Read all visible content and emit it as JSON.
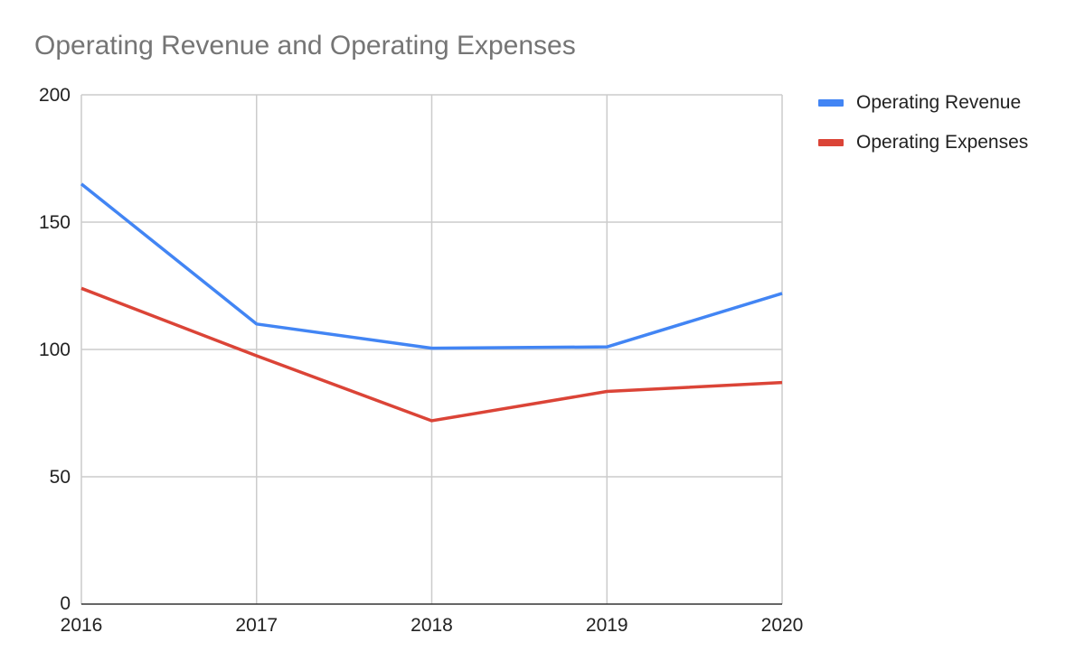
{
  "chart_data": {
    "type": "line",
    "title": "Operating Revenue and Operating Expenses",
    "xlabel": "",
    "ylabel": "",
    "categories": [
      "2016",
      "2017",
      "2018",
      "2019",
      "2020"
    ],
    "series": [
      {
        "name": "Operating Revenue",
        "color": "#4285f4",
        "values": [
          165,
          110,
          100.5,
          101,
          122
        ]
      },
      {
        "name": "Operating Expenses",
        "color": "#db4437",
        "values": [
          124,
          97.5,
          72,
          83.5,
          87
        ]
      }
    ],
    "ylim": [
      0,
      200
    ],
    "yticks": [
      "0",
      "50",
      "100",
      "150",
      "200"
    ],
    "grid": true,
    "legend_position": "right"
  }
}
